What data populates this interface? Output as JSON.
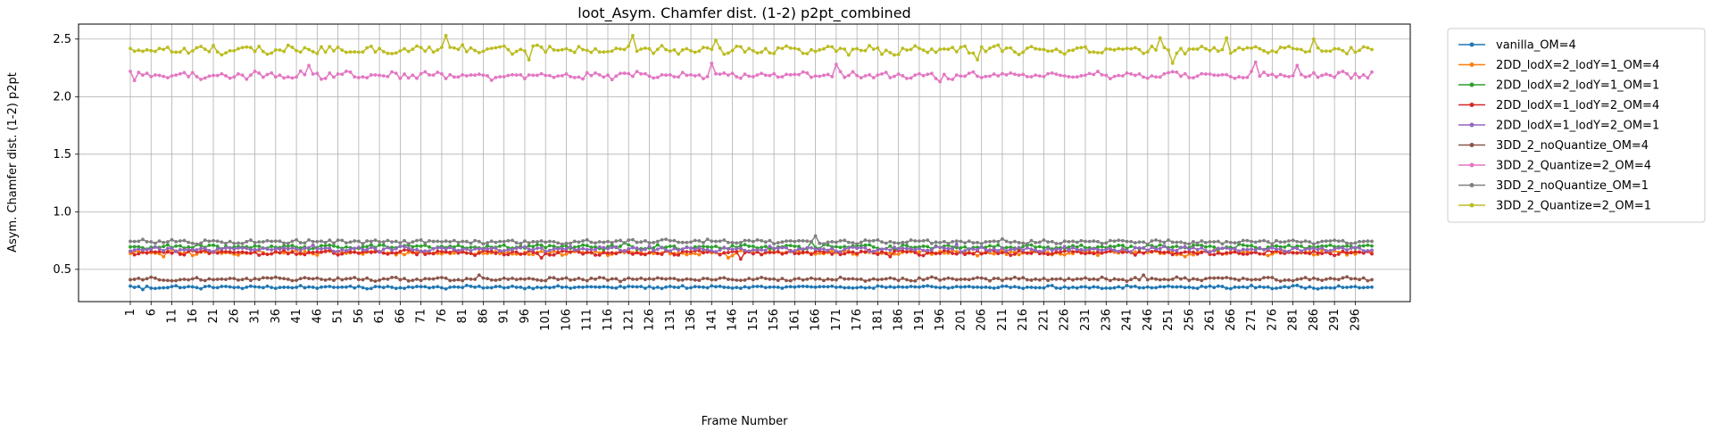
{
  "chart_data": {
    "type": "line",
    "title": "loot_Asym. Chamfer dist. (1-2) p2pt_combined",
    "xlabel": "Frame Number",
    "ylabel": "Asym. Chamfer dist. (1-2) p2pt",
    "x_range": [
      1,
      300
    ],
    "x_ticks": [
      1,
      6,
      11,
      16,
      21,
      26,
      31,
      36,
      41,
      46,
      51,
      56,
      61,
      66,
      71,
      76,
      81,
      86,
      91,
      96,
      101,
      106,
      111,
      116,
      121,
      126,
      131,
      136,
      141,
      146,
      151,
      156,
      161,
      166,
      171,
      176,
      181,
      186,
      191,
      196,
      201,
      206,
      211,
      216,
      221,
      226,
      231,
      236,
      241,
      246,
      251,
      256,
      261,
      266,
      271,
      276,
      281,
      286,
      291,
      296
    ],
    "y_ticks": [
      0.5,
      1.0,
      1.5,
      2.0,
      2.5
    ],
    "y_tick_labels": [
      "0.5",
      "1.0",
      "1.5",
      "2.0",
      "2.5"
    ],
    "ylim": [
      0.22,
      2.63
    ],
    "grid": true,
    "legend_position": "outside-right",
    "series": [
      {
        "name": "vanilla_OM=4",
        "color": "#1f77b4",
        "base": 0.345,
        "amp": 0.013,
        "spikes": [
          [
            4,
            0.325
          ],
          [
            225,
            0.335
          ]
        ]
      },
      {
        "name": "2DD_lodX=2_lodY=1_OM=4",
        "color": "#ff7f0e",
        "base": 0.645,
        "amp": 0.022,
        "spikes": [
          [
            9,
            0.61
          ],
          [
            145,
            0.6
          ],
          [
            255,
            0.61
          ]
        ]
      },
      {
        "name": "2DD_lodX=2_lodY=1_OM=1",
        "color": "#2ca02c",
        "base": 0.695,
        "amp": 0.022,
        "spikes": [
          [
            120,
            0.73
          ],
          [
            165,
            0.74
          ]
        ]
      },
      {
        "name": "2DD_lodX=1_lodY=2_OM=4",
        "color": "#d62728",
        "base": 0.645,
        "amp": 0.022,
        "spikes": [
          [
            100,
            0.6
          ],
          [
            148,
            0.59
          ],
          [
            184,
            0.61
          ]
        ]
      },
      {
        "name": "2DD_lodX=1_lodY=2_OM=1",
        "color": "#9467bd",
        "base": 0.675,
        "amp": 0.022,
        "spikes": [
          [
            45,
            0.71
          ],
          [
            200,
            0.72
          ],
          [
            250,
            0.7
          ]
        ]
      },
      {
        "name": "3DD_2_noQuantize_OM=4",
        "color": "#8c564b",
        "base": 0.415,
        "amp": 0.018,
        "spikes": [
          [
            85,
            0.45
          ],
          [
            245,
            0.45
          ]
        ]
      },
      {
        "name": "3DD_2_Quantize=2_OM=4",
        "color": "#e377c2",
        "base": 2.185,
        "amp": 0.035,
        "spikes": [
          [
            2,
            2.14
          ],
          [
            3,
            2.21
          ],
          [
            44,
            2.27
          ],
          [
            141,
            2.29
          ],
          [
            171,
            2.28
          ],
          [
            196,
            2.13
          ],
          [
            272,
            2.3
          ],
          [
            282,
            2.27
          ]
        ]
      },
      {
        "name": "3DD_2_noQuantize_OM=1",
        "color": "#7f7f7f",
        "base": 0.74,
        "amp": 0.02,
        "spikes": [
          [
            166,
            0.79
          ],
          [
            4,
            0.76
          ]
        ]
      },
      {
        "name": "3DD_2_Quantize=2_OM=1",
        "color": "#bcbd22",
        "base": 2.405,
        "amp": 0.04,
        "spikes": [
          [
            77,
            2.53
          ],
          [
            81,
            2.45
          ],
          [
            97,
            2.32
          ],
          [
            122,
            2.53
          ],
          [
            142,
            2.49
          ],
          [
            205,
            2.32
          ],
          [
            252,
            2.29
          ],
          [
            265,
            2.51
          ],
          [
            286,
            2.5
          ],
          [
            249,
            2.51
          ]
        ]
      }
    ]
  }
}
